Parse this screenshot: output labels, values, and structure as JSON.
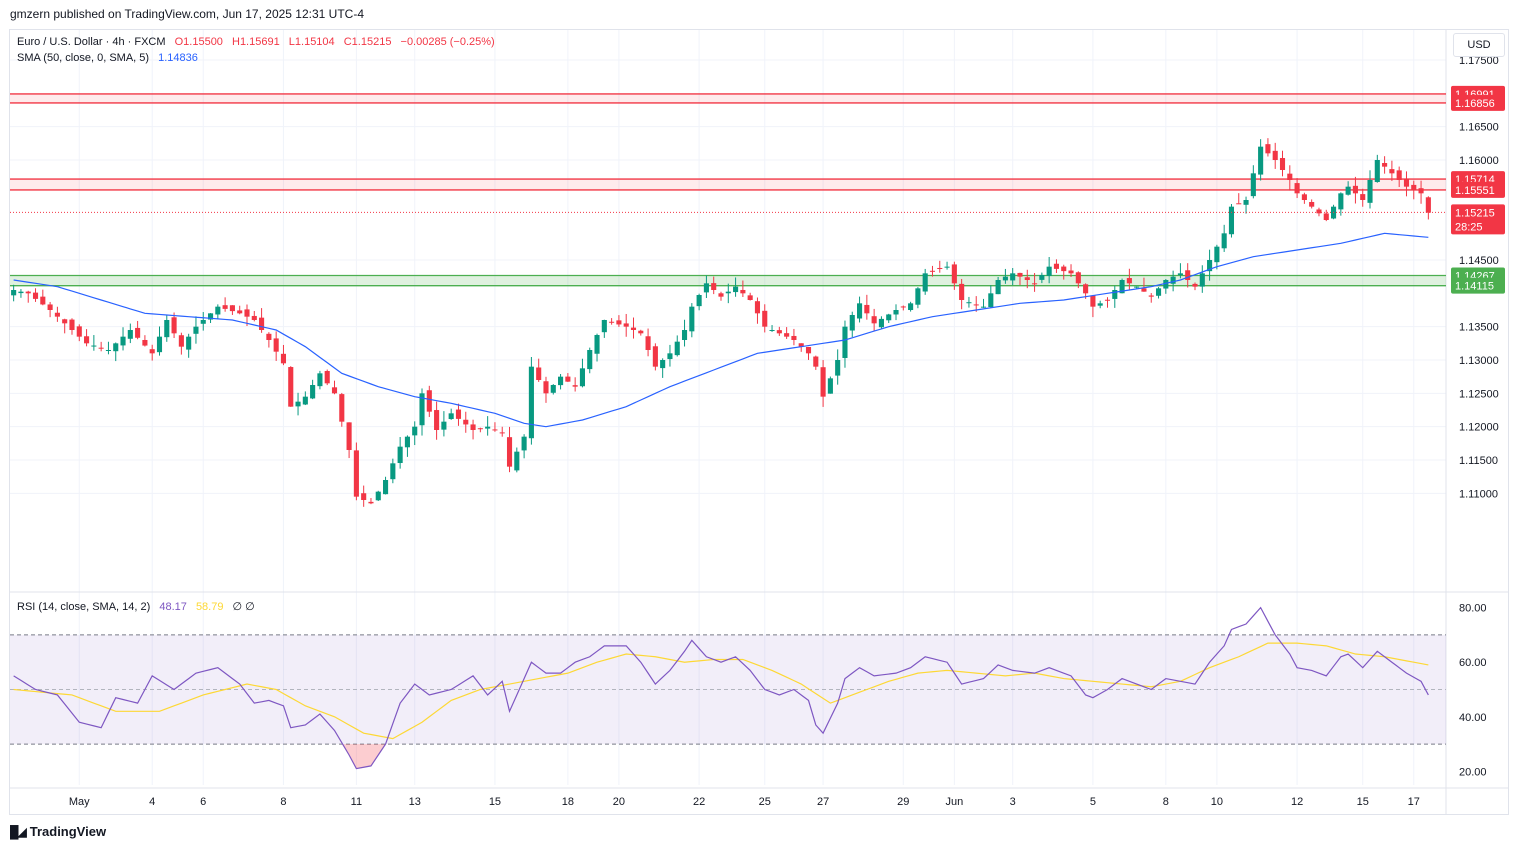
{
  "publisher_line": "gmzern published on TradingView.com, Jun 17, 2025 12:31 UTC-4",
  "currency_button": "USD",
  "legend": {
    "symbol": "Euro / U.S. Dollar · 4h · FXCM",
    "open": "O1.15500",
    "high": "H1.15691",
    "low": "L1.15104",
    "close": "C1.15215",
    "change": "−0.00285 (−0.25%)",
    "sma_label": "SMA (50, close, 0, SMA, 5)",
    "sma_value": "1.14836",
    "rsi_label": "RSI (14, close, SMA, 14, 2)",
    "rsi_value": "48.17",
    "rsi_sma_value": "58.79",
    "rsi_extra": "∅ ∅"
  },
  "branding": "TradingView",
  "colors": {
    "up": "#089981",
    "down": "#f23645",
    "sma": "#2962ff",
    "rsi": "#7e57c2",
    "rsi_sma": "#fdd835",
    "resistance": "#f23645",
    "support": "#4caf50"
  },
  "chart_data": [
    {
      "type": "candlestick",
      "timeframe": "4h",
      "ylim": [
        1.0955,
        1.1795
      ],
      "y_ticks": [
        "1.17500",
        "1.16500",
        "1.16000",
        "1.14500",
        "1.13500",
        "1.13000",
        "1.12500",
        "1.12000",
        "1.11500",
        "1.11000"
      ],
      "x_ticks": [
        {
          "label": "May",
          "bar": 8
        },
        {
          "label": "4",
          "bar": 17
        },
        {
          "label": "6",
          "bar": 24
        },
        {
          "label": "8",
          "bar": 34
        },
        {
          "label": "11",
          "bar": 43
        },
        {
          "label": "13",
          "bar": 50
        },
        {
          "label": "15",
          "bar": 60
        },
        {
          "label": "18",
          "bar": 69
        },
        {
          "label": "20",
          "bar": 76
        },
        {
          "label": "22",
          "bar": 86
        },
        {
          "label": "25",
          "bar": 94
        },
        {
          "label": "27",
          "bar": 101
        },
        {
          "label": "29",
          "bar": 111
        },
        {
          "label": "Jun",
          "bar": 118
        },
        {
          "label": "3",
          "bar": 125
        },
        {
          "label": "5",
          "bar": 135
        },
        {
          "label": "8",
          "bar": 144
        },
        {
          "label": "10",
          "bar": 151
        },
        {
          "label": "12",
          "bar": 161
        },
        {
          "label": "15",
          "bar": 169
        },
        {
          "label": "17",
          "bar": 175
        }
      ],
      "bar_count": 178,
      "last_price": "1.15215",
      "countdown": "28:25",
      "horizontal_levels": [
        {
          "label": "1.16991",
          "kind": "resistance",
          "price": 1.16991
        },
        {
          "label": "1.16856",
          "kind": "resistance",
          "price": 1.16856
        },
        {
          "label": "1.15714",
          "kind": "resistance",
          "price": 1.15714
        },
        {
          "label": "1.15551",
          "kind": "resistance",
          "price": 1.15551
        },
        {
          "label": "1.14267",
          "kind": "support",
          "price": 1.14267
        },
        {
          "label": "1.14115",
          "kind": "support",
          "price": 1.14115
        }
      ],
      "close_anchors": [
        [
          0,
          1.1405
        ],
        [
          2,
          1.14
        ],
        [
          5,
          1.1375
        ],
        [
          8,
          1.1345
        ],
        [
          10,
          1.1325
        ],
        [
          13,
          1.1315
        ],
        [
          16,
          1.1345
        ],
        [
          19,
          1.131
        ],
        [
          21,
          1.136
        ],
        [
          23,
          1.132
        ],
        [
          25,
          1.135
        ],
        [
          28,
          1.138
        ],
        [
          31,
          1.137
        ],
        [
          33,
          1.136
        ],
        [
          35,
          1.133
        ],
        [
          37,
          1.1295
        ],
        [
          38,
          1.123
        ],
        [
          40,
          1.1245
        ],
        [
          42,
          1.128
        ],
        [
          44,
          1.125
        ],
        [
          46,
          1.1165
        ],
        [
          47,
          1.1095
        ],
        [
          49,
          1.1085
        ],
        [
          51,
          1.112
        ],
        [
          53,
          1.117
        ],
        [
          55,
          1.12
        ],
        [
          56,
          1.125
        ],
        [
          58,
          1.1195
        ],
        [
          60,
          1.122
        ],
        [
          63,
          1.1195
        ],
        [
          65,
          1.12
        ],
        [
          67,
          1.119
        ],
        [
          68,
          1.114
        ],
        [
          70,
          1.1185
        ],
        [
          71,
          1.129
        ],
        [
          73,
          1.125
        ],
        [
          75,
          1.1275
        ],
        [
          77,
          1.126
        ],
        [
          79,
          1.1315
        ],
        [
          81,
          1.136
        ],
        [
          84,
          1.135
        ],
        [
          86,
          1.134
        ],
        [
          88,
          1.129
        ],
        [
          90,
          1.131
        ],
        [
          92,
          1.1345
        ],
        [
          93,
          1.138
        ],
        [
          95,
          1.1415
        ],
        [
          97,
          1.1395
        ],
        [
          99,
          1.141
        ],
        [
          101,
          1.139
        ],
        [
          103,
          1.135
        ],
        [
          105,
          1.134
        ],
        [
          107,
          1.133
        ],
        [
          109,
          1.131
        ],
        [
          110,
          1.129
        ],
        [
          111,
          1.1245
        ],
        [
          113,
          1.13
        ],
        [
          114,
          1.135
        ],
        [
          116,
          1.1385
        ],
        [
          118,
          1.1355
        ],
        [
          121,
          1.1375
        ],
        [
          123,
          1.1385
        ],
        [
          125,
          1.143
        ],
        [
          128,
          1.144
        ],
        [
          130,
          1.139
        ],
        [
          133,
          1.138
        ],
        [
          135,
          1.142
        ],
        [
          137,
          1.143
        ],
        [
          140,
          1.1415
        ],
        [
          142,
          1.144
        ],
        [
          145,
          1.143
        ],
        [
          147,
          1.14
        ],
        [
          148,
          1.138
        ],
        [
          150,
          1.139
        ],
        [
          152,
          1.142
        ],
        [
          154,
          1.141
        ],
        [
          156,
          1.1395
        ],
        [
          158,
          1.142
        ],
        [
          160,
          1.143
        ],
        [
          162,
          1.141
        ],
        [
          164,
          1.145
        ],
        [
          166,
          1.149
        ],
        [
          167,
          1.153
        ],
        [
          169,
          1.154
        ],
        [
          171,
          1.162
        ],
        [
          173,
          1.16
        ],
        [
          175,
          1.157
        ],
        [
          176,
          1.155
        ],
        [
          178,
          1.153
        ],
        [
          180,
          1.151
        ],
        [
          182,
          1.155
        ],
        [
          183,
          1.156
        ],
        [
          185,
          1.154
        ],
        [
          187,
          1.16
        ],
        [
          189,
          1.158
        ],
        [
          191,
          1.156
        ],
        [
          193,
          1.155
        ],
        [
          194,
          1.1521
        ]
      ],
      "sma_anchors": [
        [
          0,
          1.142
        ],
        [
          6,
          1.141
        ],
        [
          12,
          1.139
        ],
        [
          18,
          1.137
        ],
        [
          24,
          1.1365
        ],
        [
          30,
          1.136
        ],
        [
          36,
          1.1345
        ],
        [
          40,
          1.132
        ],
        [
          45,
          1.128
        ],
        [
          50,
          1.126
        ],
        [
          55,
          1.1245
        ],
        [
          60,
          1.1235
        ],
        [
          66,
          1.122
        ],
        [
          70,
          1.1205
        ],
        [
          73,
          1.12
        ],
        [
          78,
          1.121
        ],
        [
          84,
          1.123
        ],
        [
          90,
          1.126
        ],
        [
          96,
          1.1285
        ],
        [
          102,
          1.131
        ],
        [
          108,
          1.132
        ],
        [
          114,
          1.133
        ],
        [
          120,
          1.135
        ],
        [
          126,
          1.1365
        ],
        [
          132,
          1.1375
        ],
        [
          138,
          1.1385
        ],
        [
          144,
          1.139
        ],
        [
          150,
          1.14
        ],
        [
          156,
          1.141
        ],
        [
          160,
          1.142
        ],
        [
          165,
          1.144
        ],
        [
          170,
          1.1455
        ],
        [
          176,
          1.1465
        ],
        [
          182,
          1.1475
        ],
        [
          188,
          1.149
        ],
        [
          194,
          1.1484
        ]
      ]
    },
    {
      "type": "line",
      "title": "RSI (14, close, SMA, 14, 2)",
      "ylim": [
        15,
        85
      ],
      "y_ticks": [
        "80.00",
        "60.00",
        "40.00",
        "20.00"
      ],
      "band": [
        30,
        70
      ],
      "midline": 50,
      "series": [
        {
          "name": "RSI",
          "values_anchors": [
            [
              0,
              55
            ],
            [
              3,
              50
            ],
            [
              6,
              48
            ],
            [
              9,
              38
            ],
            [
              12,
              36
            ],
            [
              14,
              47
            ],
            [
              17,
              45
            ],
            [
              19,
              55
            ],
            [
              22,
              50
            ],
            [
              25,
              56
            ],
            [
              28,
              58
            ],
            [
              31,
              52
            ],
            [
              33,
              45
            ],
            [
              35,
              46
            ],
            [
              37,
              44
            ],
            [
              38,
              36
            ],
            [
              40,
              37
            ],
            [
              42,
              41
            ],
            [
              44,
              35
            ],
            [
              46,
              26
            ],
            [
              47,
              21
            ],
            [
              49,
              22
            ],
            [
              51,
              30
            ],
            [
              53,
              45
            ],
            [
              55,
              52
            ],
            [
              57,
              48
            ],
            [
              60,
              50
            ],
            [
              63,
              55
            ],
            [
              65,
              48
            ],
            [
              67,
              53
            ],
            [
              68,
              42
            ],
            [
              70,
              54
            ],
            [
              71,
              60
            ],
            [
              73,
              56
            ],
            [
              75,
              56
            ],
            [
              77,
              60
            ],
            [
              79,
              62
            ],
            [
              81,
              66
            ],
            [
              84,
              66
            ],
            [
              86,
              60
            ],
            [
              88,
              52
            ],
            [
              90,
              57
            ],
            [
              92,
              64
            ],
            [
              93,
              68
            ],
            [
              95,
              62
            ],
            [
              97,
              60
            ],
            [
              99,
              62
            ],
            [
              101,
              57
            ],
            [
              103,
              50
            ],
            [
              105,
              48
            ],
            [
              107,
              50
            ],
            [
              109,
              46
            ],
            [
              110,
              37
            ],
            [
              111,
              34
            ],
            [
              113,
              45
            ],
            [
              114,
              54
            ],
            [
              116,
              58
            ],
            [
              118,
              55
            ],
            [
              121,
              56
            ],
            [
              123,
              58
            ],
            [
              125,
              62
            ],
            [
              128,
              60
            ],
            [
              130,
              52
            ],
            [
              133,
              54
            ],
            [
              135,
              59
            ],
            [
              137,
              57
            ],
            [
              140,
              56
            ],
            [
              142,
              58
            ],
            [
              145,
              55
            ],
            [
              147,
              48
            ],
            [
              148,
              47
            ],
            [
              150,
              50
            ],
            [
              152,
              54
            ],
            [
              154,
              52
            ],
            [
              156,
              50
            ],
            [
              158,
              54
            ],
            [
              160,
              53
            ],
            [
              162,
              52
            ],
            [
              164,
              60
            ],
            [
              166,
              66
            ],
            [
              167,
              72
            ],
            [
              169,
              74
            ],
            [
              171,
              80
            ],
            [
              173,
              70
            ],
            [
              175,
              63
            ],
            [
              176,
              58
            ],
            [
              178,
              57
            ],
            [
              180,
              55
            ],
            [
              182,
              62
            ],
            [
              183,
              63
            ],
            [
              185,
              58
            ],
            [
              187,
              64
            ],
            [
              189,
              60
            ],
            [
              191,
              56
            ],
            [
              193,
              53
            ],
            [
              194,
              48
            ]
          ]
        },
        {
          "name": "RSI SMA",
          "values_anchors": [
            [
              0,
              50
            ],
            [
              8,
              48
            ],
            [
              14,
              42
            ],
            [
              20,
              42
            ],
            [
              26,
              48
            ],
            [
              32,
              52
            ],
            [
              36,
              50
            ],
            [
              40,
              44
            ],
            [
              44,
              40
            ],
            [
              48,
              34
            ],
            [
              52,
              32
            ],
            [
              56,
              38
            ],
            [
              60,
              46
            ],
            [
              64,
              50
            ],
            [
              68,
              52
            ],
            [
              72,
              54
            ],
            [
              76,
              56
            ],
            [
              80,
              60
            ],
            [
              84,
              63
            ],
            [
              88,
              62
            ],
            [
              92,
              60
            ],
            [
              96,
              61
            ],
            [
              100,
              61
            ],
            [
              104,
              57
            ],
            [
              108,
              52
            ],
            [
              112,
              45
            ],
            [
              116,
              49
            ],
            [
              120,
              53
            ],
            [
              124,
              56
            ],
            [
              128,
              57
            ],
            [
              132,
              56
            ],
            [
              136,
              55
            ],
            [
              140,
              56
            ],
            [
              144,
              54
            ],
            [
              148,
              53
            ],
            [
              152,
              52
            ],
            [
              156,
              51
            ],
            [
              160,
              53
            ],
            [
              164,
              58
            ],
            [
              168,
              62
            ],
            [
              172,
              67
            ],
            [
              176,
              67
            ],
            [
              180,
              66
            ],
            [
              184,
              63
            ],
            [
              188,
              62
            ],
            [
              192,
              60
            ],
            [
              194,
              59
            ]
          ]
        }
      ]
    }
  ]
}
